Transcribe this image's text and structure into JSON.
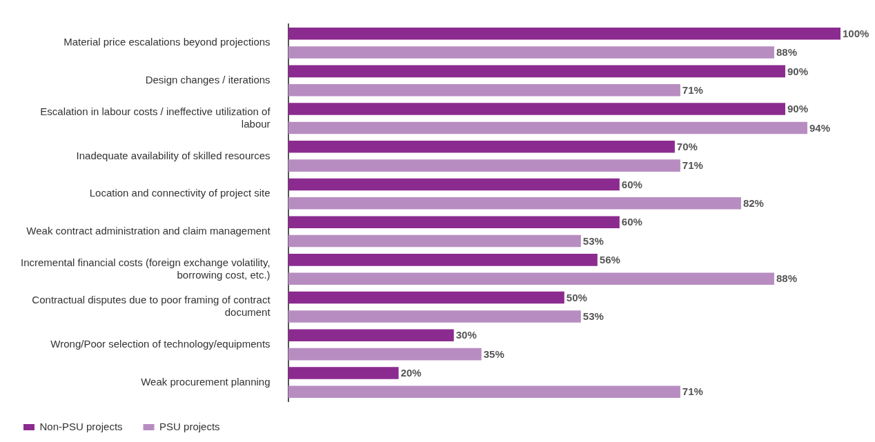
{
  "chart_data": {
    "type": "bar",
    "orientation": "horizontal",
    "categories": [
      "Material price escalations beyond projections",
      "Design changes / iterations",
      "Escalation in labour costs / ineffective utilization of labour",
      "Inadequate availability of skilled resources",
      "Location and connectivity of project site",
      "Weak contract administration and claim management",
      "Incremental financial costs (foreign exchange volatility, borrowing cost, etc.)",
      "Contractual disputes due to poor framing of contract document",
      "Wrong/Poor selection of technology/equipments",
      "Weak procurement planning"
    ],
    "series": [
      {
        "name": "Non-PSU projects",
        "color": "#8b2b8f",
        "values": [
          100,
          90,
          90,
          70,
          60,
          60,
          56,
          50,
          30,
          20
        ],
        "value_labels": [
          "100%",
          "90%",
          "90%",
          "70%",
          "60%",
          "60%",
          "56%",
          "50%",
          "30%",
          "20%"
        ]
      },
      {
        "name": "PSU projects",
        "color": "#b78dc1",
        "values": [
          88,
          71,
          94,
          71,
          82,
          53,
          88,
          53,
          35,
          71
        ],
        "value_labels": [
          "88%",
          "71%",
          "94%",
          "71%",
          "82%",
          "53%",
          "88%",
          "53%",
          "35%",
          "71%"
        ]
      }
    ],
    "xlim": [
      0,
      100
    ],
    "tick_labels": "y",
    "grid": false,
    "legend": "bottom"
  }
}
